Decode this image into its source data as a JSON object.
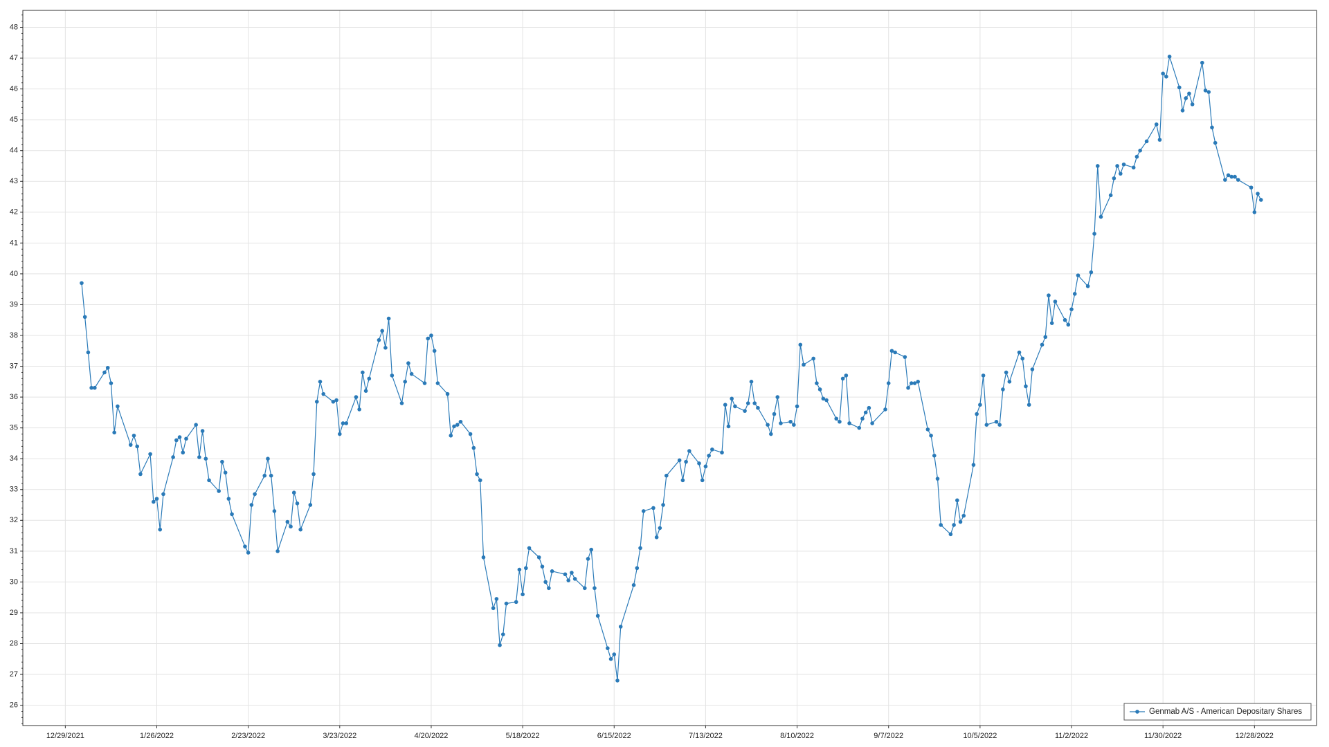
{
  "chart_data": {
    "type": "line",
    "xlim": [
      "12/16/2021",
      "1/16/2023"
    ],
    "xticks": [
      "12/29/2021",
      "1/26/2022",
      "2/23/2022",
      "3/23/2022",
      "4/20/2022",
      "5/18/2022",
      "6/15/2022",
      "7/13/2022",
      "8/10/2022",
      "9/7/2022",
      "10/5/2022",
      "11/2/2022",
      "11/30/2022",
      "12/28/2022"
    ],
    "ylim": [
      25.34,
      48.55
    ],
    "yticks": [
      26,
      27,
      28,
      29,
      30,
      31,
      32,
      33,
      34,
      35,
      36,
      37,
      38,
      39,
      40,
      41,
      42,
      43,
      44,
      45,
      46,
      47,
      48
    ],
    "grid": true,
    "legend": "lower right",
    "x": [
      "1/3/2022",
      "1/4/2022",
      "1/5/2022",
      "1/6/2022",
      "1/7/2022",
      "1/10/2022",
      "1/11/2022",
      "1/12/2022",
      "1/13/2022",
      "1/14/2022",
      "1/18/2022",
      "1/19/2022",
      "1/20/2022",
      "1/21/2022",
      "1/24/2022",
      "1/25/2022",
      "1/26/2022",
      "1/27/2022",
      "1/28/2022",
      "1/31/2022",
      "2/1/2022",
      "2/2/2022",
      "2/3/2022",
      "2/4/2022",
      "2/7/2022",
      "2/8/2022",
      "2/9/2022",
      "2/10/2022",
      "2/11/2022",
      "2/14/2022",
      "2/15/2022",
      "2/16/2022",
      "2/17/2022",
      "2/18/2022",
      "2/22/2022",
      "2/23/2022",
      "2/24/2022",
      "2/25/2022",
      "2/28/2022",
      "3/1/2022",
      "3/2/2022",
      "3/3/2022",
      "3/4/2022",
      "3/7/2022",
      "3/8/2022",
      "3/9/2022",
      "3/10/2022",
      "3/11/2022",
      "3/14/2022",
      "3/15/2022",
      "3/16/2022",
      "3/17/2022",
      "3/18/2022",
      "3/21/2022",
      "3/22/2022",
      "3/23/2022",
      "3/24/2022",
      "3/25/2022",
      "3/28/2022",
      "3/29/2022",
      "3/30/2022",
      "3/31/2022",
      "4/1/2022",
      "4/4/2022",
      "4/5/2022",
      "4/6/2022",
      "4/7/2022",
      "4/8/2022",
      "4/11/2022",
      "4/12/2022",
      "4/13/2022",
      "4/14/2022",
      "4/18/2022",
      "4/19/2022",
      "4/20/2022",
      "4/21/2022",
      "4/22/2022",
      "4/25/2022",
      "4/26/2022",
      "4/27/2022",
      "4/28/2022",
      "4/29/2022",
      "5/2/2022",
      "5/3/2022",
      "5/4/2022",
      "5/5/2022",
      "5/6/2022",
      "5/9/2022",
      "5/10/2022",
      "5/11/2022",
      "5/12/2022",
      "5/13/2022",
      "5/16/2022",
      "5/17/2022",
      "5/18/2022",
      "5/19/2022",
      "5/20/2022",
      "5/23/2022",
      "5/24/2022",
      "5/25/2022",
      "5/26/2022",
      "5/27/2022",
      "5/31/2022",
      "6/1/2022",
      "6/2/2022",
      "6/3/2022",
      "6/6/2022",
      "6/7/2022",
      "6/8/2022",
      "6/9/2022",
      "6/10/2022",
      "6/13/2022",
      "6/14/2022",
      "6/15/2022",
      "6/16/2022",
      "6/17/2022",
      "6/21/2022",
      "6/22/2022",
      "6/23/2022",
      "6/24/2022",
      "6/27/2022",
      "6/28/2022",
      "6/29/2022",
      "6/30/2022",
      "7/1/2022",
      "7/5/2022",
      "7/6/2022",
      "7/7/2022",
      "7/8/2022",
      "7/11/2022",
      "7/12/2022",
      "7/13/2022",
      "7/14/2022",
      "7/15/2022",
      "7/18/2022",
      "7/19/2022",
      "7/20/2022",
      "7/21/2022",
      "7/22/2022",
      "7/25/2022",
      "7/26/2022",
      "7/27/2022",
      "7/28/2022",
      "7/29/2022",
      "8/1/2022",
      "8/2/2022",
      "8/3/2022",
      "8/4/2022",
      "8/5/2022",
      "8/8/2022",
      "8/9/2022",
      "8/10/2022",
      "8/11/2022",
      "8/12/2022",
      "8/15/2022",
      "8/16/2022",
      "8/17/2022",
      "8/18/2022",
      "8/19/2022",
      "8/22/2022",
      "8/23/2022",
      "8/24/2022",
      "8/25/2022",
      "8/26/2022",
      "8/29/2022",
      "8/30/2022",
      "8/31/2022",
      "9/1/2022",
      "9/2/2022",
      "9/6/2022",
      "9/7/2022",
      "9/8/2022",
      "9/9/2022",
      "9/12/2022",
      "9/13/2022",
      "9/14/2022",
      "9/15/2022",
      "9/16/2022",
      "9/19/2022",
      "9/20/2022",
      "9/21/2022",
      "9/22/2022",
      "9/23/2022",
      "9/26/2022",
      "9/27/2022",
      "9/28/2022",
      "9/29/2022",
      "9/30/2022",
      "10/3/2022",
      "10/4/2022",
      "10/5/2022",
      "10/6/2022",
      "10/7/2022",
      "10/10/2022",
      "10/11/2022",
      "10/12/2022",
      "10/13/2022",
      "10/14/2022",
      "10/17/2022",
      "10/18/2022",
      "10/19/2022",
      "10/20/2022",
      "10/21/2022",
      "10/24/2022",
      "10/25/2022",
      "10/26/2022",
      "10/27/2022",
      "10/28/2022",
      "10/31/2022",
      "11/1/2022",
      "11/2/2022",
      "11/3/2022",
      "11/4/2022",
      "11/7/2022",
      "11/8/2022",
      "11/9/2022",
      "11/10/2022",
      "11/11/2022",
      "11/14/2022",
      "11/15/2022",
      "11/16/2022",
      "11/17/2022",
      "11/18/2022",
      "11/21/2022",
      "11/22/2022",
      "11/23/2022",
      "11/25/2022",
      "11/28/2022",
      "11/29/2022",
      "11/30/2022",
      "12/1/2022",
      "12/2/2022",
      "12/5/2022",
      "12/6/2022",
      "12/7/2022",
      "12/8/2022",
      "12/9/2022",
      "12/12/2022",
      "12/13/2022",
      "12/14/2022",
      "12/15/2022",
      "12/16/2022",
      "12/19/2022",
      "12/20/2022",
      "12/21/2022",
      "12/22/2022",
      "12/23/2022",
      "12/27/2022",
      "12/28/2022",
      "12/29/2022",
      "12/30/2022"
    ],
    "series": [
      {
        "name": "Genmab A/S - American Depositary Shares",
        "color": "#2a7ab8",
        "values": [
          39.7,
          38.6,
          37.45,
          36.3,
          36.3,
          36.8,
          36.95,
          36.45,
          34.85,
          35.7,
          34.45,
          34.75,
          34.4,
          33.5,
          34.15,
          32.6,
          32.7,
          31.7,
          32.85,
          34.05,
          34.6,
          34.7,
          34.2,
          34.65,
          35.1,
          34.05,
          34.9,
          34.0,
          33.3,
          32.95,
          33.9,
          33.55,
          32.7,
          32.2,
          31.15,
          30.95,
          32.5,
          32.85,
          33.45,
          34.0,
          33.45,
          32.3,
          31.0,
          31.95,
          31.8,
          32.9,
          32.55,
          31.7,
          32.5,
          33.5,
          35.85,
          36.5,
          36.1,
          35.85,
          35.9,
          34.8,
          35.15,
          35.15,
          36.0,
          35.6,
          36.8,
          36.2,
          36.6,
          37.85,
          38.15,
          37.6,
          38.55,
          36.7,
          35.8,
          36.5,
          37.1,
          36.75,
          36.45,
          37.9,
          38.0,
          37.5,
          36.45,
          36.1,
          34.75,
          35.05,
          35.1,
          35.2,
          34.8,
          34.35,
          33.5,
          33.3,
          30.8,
          29.15,
          29.45,
          27.95,
          28.3,
          29.3,
          29.35,
          30.4,
          29.6,
          30.45,
          31.1,
          30.8,
          30.5,
          30.0,
          29.8,
          30.35,
          30.25,
          30.05,
          30.3,
          30.1,
          29.8,
          30.75,
          31.05,
          29.8,
          28.9,
          27.85,
          27.5,
          27.65,
          26.8,
          28.55,
          29.9,
          30.45,
          31.1,
          32.3,
          32.4,
          31.45,
          31.75,
          32.5,
          33.45,
          33.95,
          33.3,
          33.9,
          34.25,
          33.85,
          33.3,
          33.75,
          34.1,
          34.3,
          34.2,
          35.75,
          35.05,
          35.95,
          35.7,
          35.55,
          35.8,
          36.5,
          35.8,
          35.65,
          35.1,
          34.8,
          35.45,
          36.0,
          35.15,
          35.2,
          35.1,
          35.7,
          37.7,
          37.05,
          37.25,
          36.45,
          36.25,
          35.95,
          35.9,
          35.3,
          35.2,
          36.6,
          36.7,
          35.15,
          35.0,
          35.3,
          35.5,
          35.65,
          35.15,
          35.6,
          36.45,
          37.5,
          37.45,
          37.3,
          36.3,
          36.45,
          36.45,
          36.5,
          34.95,
          34.75,
          34.1,
          33.35,
          31.85,
          31.55,
          31.85,
          32.65,
          31.95,
          32.15,
          33.8,
          35.45,
          35.75,
          36.7,
          35.1,
          35.2,
          35.1,
          36.25,
          36.8,
          36.5,
          37.45,
          37.25,
          36.35,
          35.75,
          36.9,
          37.7,
          37.95,
          39.3,
          38.4,
          39.1,
          38.5,
          38.35,
          38.85,
          39.35,
          39.95,
          39.6,
          40.05,
          41.3,
          43.5,
          41.85,
          42.55,
          43.1,
          43.5,
          43.25,
          43.55,
          43.45,
          43.8,
          44.0,
          44.3,
          44.85,
          44.35,
          46.5,
          46.4,
          47.05,
          46.05,
          45.3,
          45.7,
          45.85,
          45.5,
          46.85,
          45.95,
          45.9,
          44.75,
          44.25,
          43.05,
          43.2,
          43.15,
          43.15,
          43.05,
          42.8,
          42.0,
          42.6,
          42.4
        ]
      }
    ]
  }
}
